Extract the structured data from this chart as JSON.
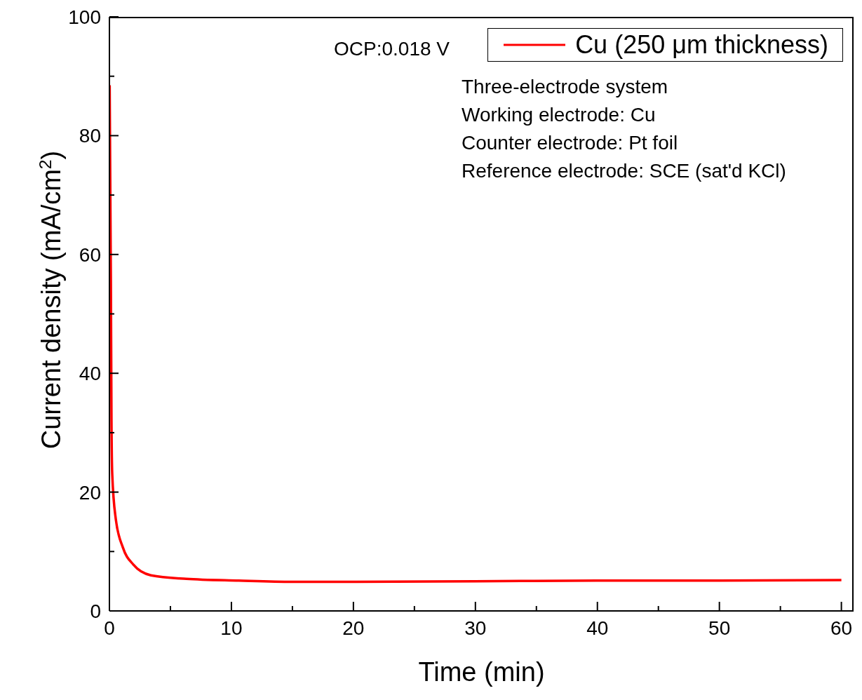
{
  "chart_data": {
    "type": "line",
    "xlabel": "Time (min)",
    "ylabel": "Current density (mA/cm$^{2}$)",
    "xlim": [
      0,
      61
    ],
    "ylim": [
      0,
      100
    ],
    "xticks": [
      0,
      {
        "value": 5,
        "label": null
      },
      10,
      {
        "value": 15,
        "label": null
      },
      20,
      {
        "value": 25,
        "label": null
      },
      30,
      {
        "value": 35,
        "label": null
      },
      40,
      {
        "value": 45,
        "label": null
      },
      50,
      {
        "value": 55,
        "label": null
      },
      60
    ],
    "yticks": [
      0,
      {
        "value": 10,
        "label": null
      },
      20,
      {
        "value": 30,
        "label": null
      },
      40,
      {
        "value": 50,
        "label": null
      },
      60,
      {
        "value": 70,
        "label": null
      },
      80,
      {
        "value": 90,
        "label": null
      },
      100
    ],
    "grid": false,
    "legend": "top right",
    "marker": "none",
    "line_style": "solid",
    "annotations": [
      "OCP:0.018 V",
      "Three-electrode system",
      "Working electrode: Cu",
      "Counter electrode: Pt foil",
      "Reference electrode: SCE (sat'd KCl)"
    ],
    "series": [
      {
        "name": "Cu (250 μm thickness)",
        "color": "#ff0000",
        "x": [
          0.02,
          0.12,
          0.17,
          0.23,
          0.52,
          1.1,
          1.96,
          3.4,
          6.3,
          10.6,
          15,
          20,
          30,
          40,
          50,
          60
        ],
        "values": [
          88.5,
          55.6,
          32,
          23.1,
          15.5,
          10.7,
          7.8,
          6.0,
          5.4,
          5.1,
          4.9,
          4.9,
          5.0,
          5.1,
          5.1,
          5.2
        ]
      }
    ]
  }
}
